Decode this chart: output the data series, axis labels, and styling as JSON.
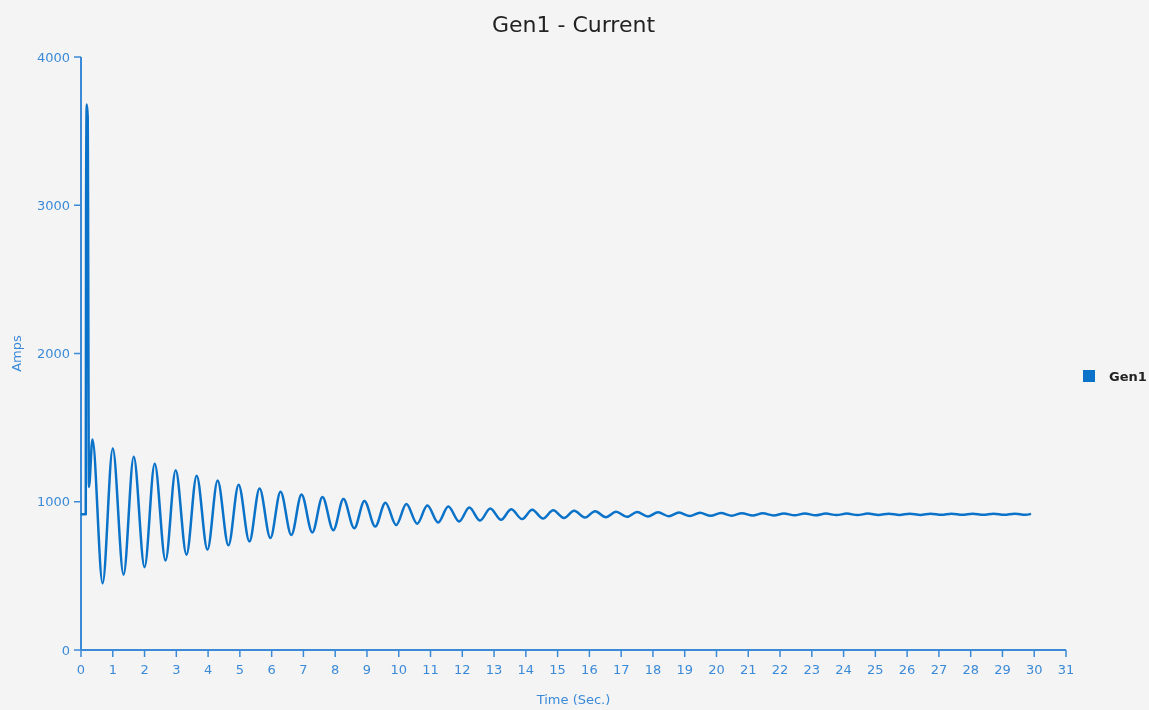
{
  "chart_data": {
    "type": "line",
    "title": "Gen1 - Current",
    "xlabel": "Time (Sec.)",
    "ylabel": "Amps",
    "xlim": [
      0,
      31
    ],
    "xticks": [
      0,
      1,
      2,
      3,
      4,
      5,
      6,
      7,
      8,
      9,
      10,
      11,
      12,
      13,
      14,
      15,
      16,
      17,
      18,
      19,
      20,
      21,
      22,
      23,
      24,
      25,
      26,
      27,
      28,
      29,
      30,
      31
    ],
    "ylim": [
      0,
      4000
    ],
    "yticks": [
      0,
      1000,
      2000,
      3000,
      4000
    ],
    "grid": false,
    "legend": "right",
    "marker": "none",
    "line_style": "solid",
    "series": [
      {
        "name": "Gen1",
        "color": "#0a72c8",
        "x": [
          0,
          0.15,
          0.16,
          0.18,
          0.21,
          0.25,
          0.36,
          0.68,
          1.0,
          1.34,
          1.66,
          2.0,
          2.32,
          2.66,
          2.98,
          3.32,
          3.64,
          3.98,
          4.3,
          4.64,
          4.96,
          5.3,
          5.62,
          5.96,
          6.28,
          6.62,
          6.94,
          7.28,
          7.6,
          7.94,
          8.26,
          8.6,
          8.92,
          9.26,
          9.58,
          9.92,
          10.24,
          10.58,
          10.9,
          11.24,
          11.56,
          11.9,
          12.22,
          12.56,
          12.88,
          13.22,
          13.54,
          13.88,
          14.2,
          14.54,
          14.86,
          15.2,
          15.52,
          15.86,
          16.18,
          16.52,
          16.84,
          17.18,
          17.5,
          17.84,
          18.16,
          18.5,
          18.82,
          19.16,
          19.48,
          19.82,
          20.14,
          20.48,
          20.8,
          21.14,
          21.46,
          21.8,
          22.12,
          22.46,
          22.78,
          23.12,
          23.44,
          23.78,
          24.1,
          24.44,
          24.76,
          25.1,
          25.42,
          25.76,
          26.08,
          26.42,
          26.74,
          27.08,
          27.4,
          27.74,
          28.06,
          28.4,
          28.72,
          29.06,
          29.38,
          29.72,
          29.9
        ],
        "values": [
          915,
          915,
          3000,
          3680,
          3600,
          1100,
          1420,
          450,
          1360,
          508,
          1304,
          559,
          1256,
          604,
          1213,
          643,
          1176,
          677,
          1143,
          706,
          1115,
          732,
          1090,
          755,
          1068,
          775,
          1049,
          793,
          1032,
          808,
          1018,
          821,
          1005,
          833,
          994,
          843,
          984,
          852,
          975,
          860,
          968,
          867,
          961,
          873,
          955,
          878,
          950,
          883,
          946,
          887,
          942,
          890,
          939,
          893,
          936,
          896,
          933,
          898,
          931,
          900,
          929,
          902,
          927,
          904,
          926,
          905,
          924,
          906,
          923,
          907,
          922,
          908,
          921,
          909,
          921,
          909,
          920,
          910,
          920,
          910,
          920,
          911,
          919,
          911,
          919,
          911,
          919,
          912,
          919,
          912,
          919,
          912,
          919,
          912,
          919,
          912,
          918
        ]
      }
    ]
  }
}
